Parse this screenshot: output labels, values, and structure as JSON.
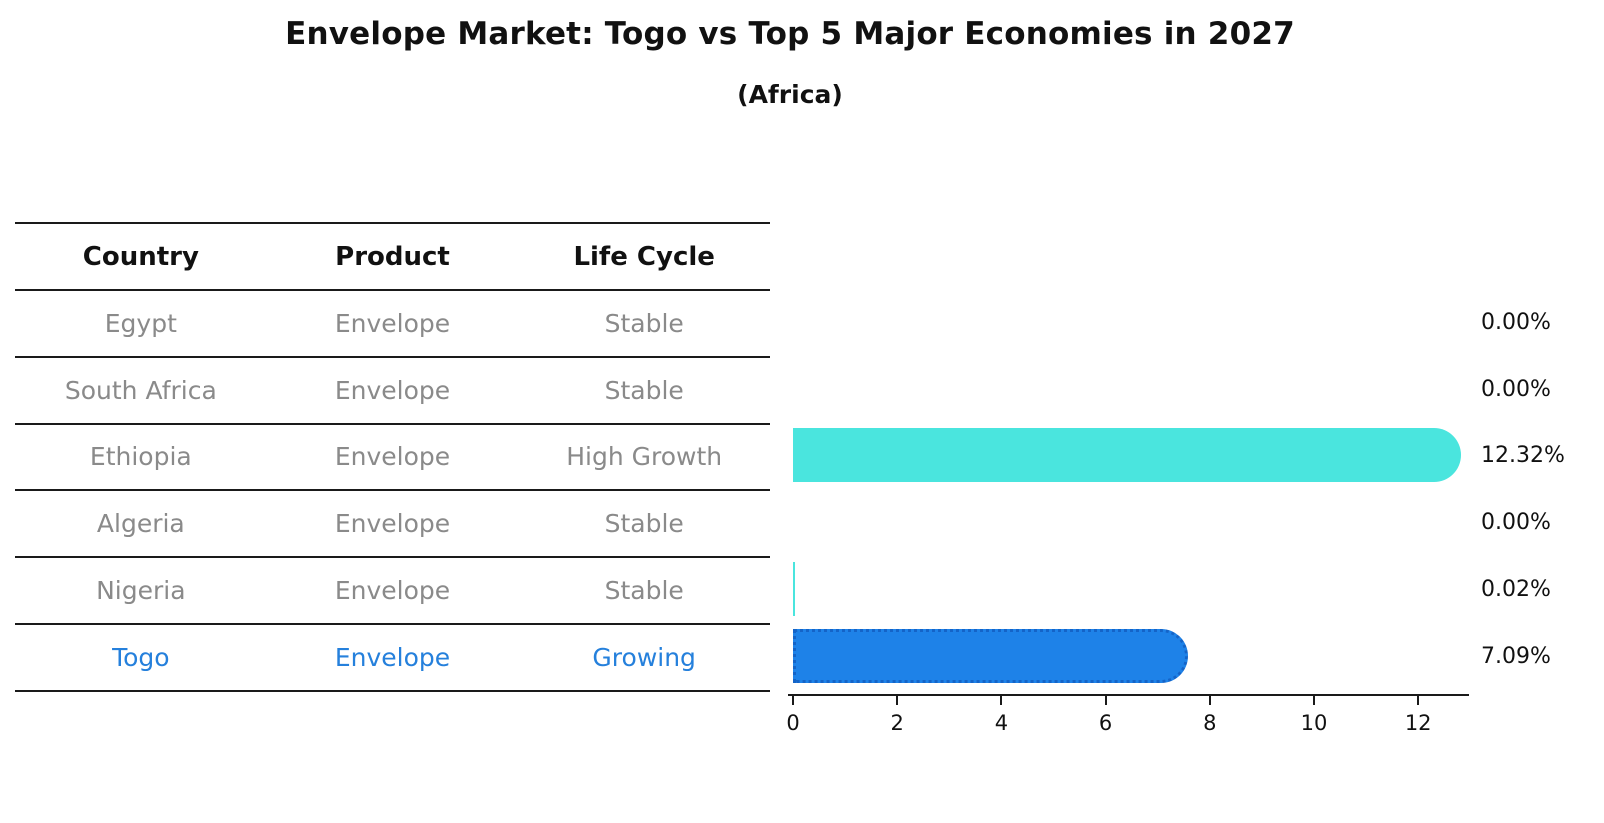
{
  "figure": {
    "title": "Envelope Market: Togo vs Top 5 Major Economies in 2027",
    "subtitle": "(Africa)"
  },
  "table": {
    "headers": [
      "Country",
      "Product",
      "Life Cycle"
    ],
    "rows": [
      {
        "country": "Egypt",
        "product": "Envelope",
        "life_cycle": "Stable",
        "accent": false
      },
      {
        "country": "South Africa",
        "product": "Envelope",
        "life_cycle": "Stable",
        "accent": false
      },
      {
        "country": "Ethiopia",
        "product": "Envelope",
        "life_cycle": "High Growth",
        "accent": false
      },
      {
        "country": "Algeria",
        "product": "Envelope",
        "life_cycle": "Stable",
        "accent": false
      },
      {
        "country": "Nigeria",
        "product": "Envelope",
        "life_cycle": "Stable",
        "accent": false
      },
      {
        "country": "Togo",
        "product": "Envelope",
        "life_cycle": "Growing",
        "accent": true
      }
    ]
  },
  "chart_data": {
    "type": "bar",
    "orientation": "horizontal",
    "title": "Envelope Market: Togo vs Top 5 Major Economies in 2027",
    "subtitle": "(Africa)",
    "categories": [
      "Egypt",
      "South Africa",
      "Ethiopia",
      "Algeria",
      "Nigeria",
      "Togo"
    ],
    "values": [
      0.0,
      0.0,
      12.32,
      0.0,
      0.02,
      7.09
    ],
    "value_labels": [
      "0.00%",
      "0.00%",
      "12.32%",
      "0.00%",
      "0.02%",
      "7.09%"
    ],
    "highlight_index": 5,
    "xlim": [
      0,
      13
    ],
    "xticks": [
      "0",
      "2",
      "4",
      "6",
      "8",
      "10",
      "12"
    ],
    "grid": false,
    "legend": false
  },
  "colors": {
    "bar_default": "#4AE5DE",
    "bar_highlight": "#1E82E8",
    "bar_highlight_edge": "#1464C8",
    "accent_text": "#2580DC",
    "row_text": "#8A8A8A"
  }
}
